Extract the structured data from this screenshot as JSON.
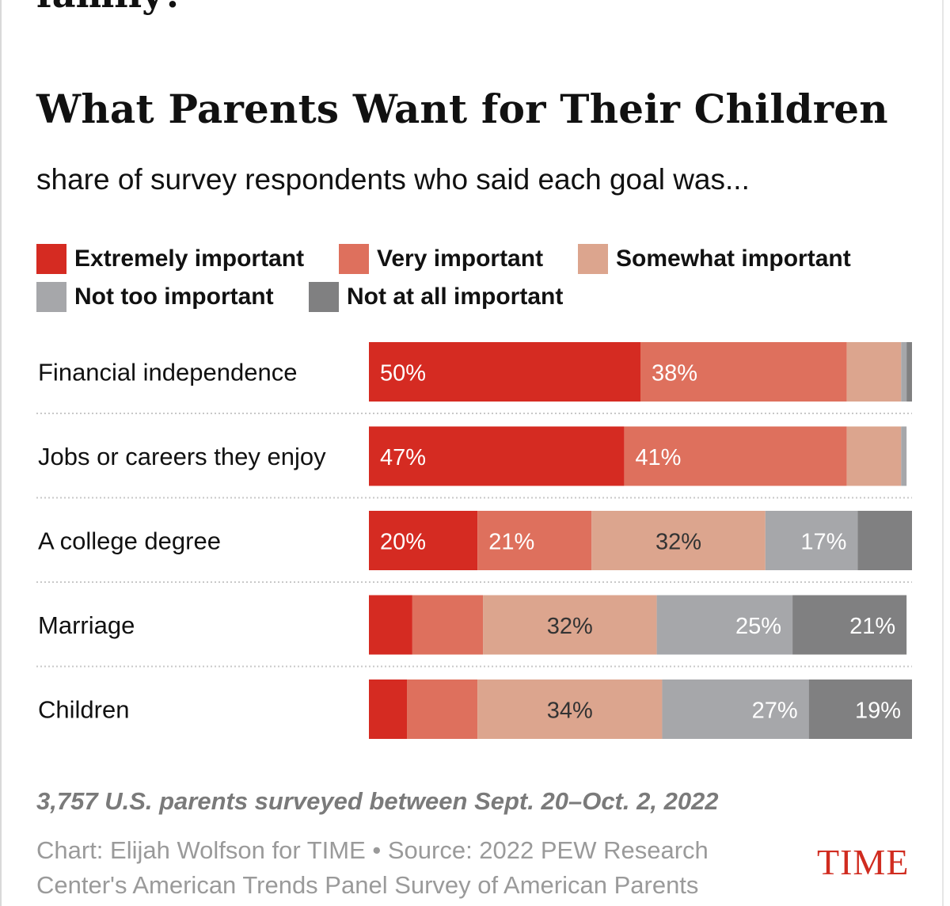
{
  "header": {
    "cut_text": "family?"
  },
  "chart_data": {
    "type": "bar",
    "orientation": "horizontal",
    "stacked": true,
    "title": "What Parents Want for Their Children",
    "subtitle": "share of survey respondents who said each goal was...",
    "xlim": [
      0,
      100
    ],
    "legend_position": "top",
    "categories": [
      "Financial independence",
      "Jobs or careers they enjoy",
      "A college degree",
      "Marriage",
      "Children"
    ],
    "series": [
      {
        "name": "Extremely important",
        "color": "#d52b22",
        "label_color": "#ffffff",
        "values": [
          50,
          47,
          20,
          8,
          7
        ]
      },
      {
        "name": "Very important",
        "color": "#de705d",
        "label_color": "#ffffff",
        "values": [
          38,
          41,
          21,
          13,
          13
        ]
      },
      {
        "name": "Somewhat important",
        "color": "#dca58e",
        "label_color": "#333333",
        "values": [
          10,
          10,
          32,
          32,
          34
        ]
      },
      {
        "name": "Not too important",
        "color": "#a6a7aa",
        "label_color": "#ffffff",
        "values": [
          1,
          1,
          17,
          25,
          27
        ]
      },
      {
        "name": "Not at all important",
        "color": "#808081",
        "label_color": "#ffffff",
        "values": [
          1,
          0,
          10,
          21,
          19
        ]
      }
    ],
    "data_labels": [
      [
        "50%",
        "38%",
        "",
        "",
        ""
      ],
      [
        "47%",
        "41%",
        "",
        "",
        ""
      ],
      [
        "20%",
        "21%",
        "32%",
        "17%",
        ""
      ],
      [
        "",
        "",
        "32%",
        "25%",
        "21%"
      ],
      [
        "",
        "",
        "34%",
        "27%",
        "19%"
      ]
    ]
  },
  "footer": {
    "note": "3,757 U.S. parents surveyed between Sept. 20–Oct. 2, 2022",
    "source": "Chart: Elijah Wolfson for TIME • Source: 2022 PEW Research Center's American Trends Panel Survey of American Parents",
    "brand": "TIME"
  }
}
